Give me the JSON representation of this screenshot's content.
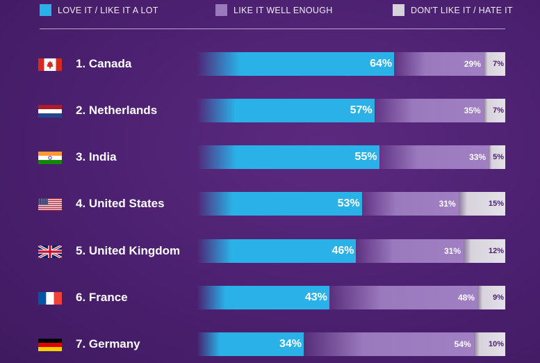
{
  "chart_data": {
    "type": "bar",
    "orientation": "horizontal",
    "stacked": true,
    "legend": {
      "placement": "top",
      "items": [
        {
          "label": "LOVE IT / LIKE IT A LOT",
          "color": "#2ab2e8"
        },
        {
          "label": "LIKE IT WELL ENOUGH",
          "color": "#9a79bd"
        },
        {
          "label": "DON'T LIKE IT / HATE IT",
          "color": "#d6d2da"
        }
      ]
    },
    "categories": [
      "1. Canada",
      "2. Netherlands",
      "3. India",
      "4. United States",
      "5. United Kingdom",
      "6. France",
      "7. Germany"
    ],
    "flags": [
      "canada-flag-icon",
      "netherlands-flag-icon",
      "india-flag-icon",
      "united-states-flag-icon",
      "united-kingdom-flag-icon",
      "france-flag-icon",
      "germany-flag-icon"
    ],
    "series": [
      {
        "name": "LOVE IT / LIKE IT A LOT",
        "values": [
          64,
          57,
          55,
          53,
          46,
          43,
          34
        ],
        "labels": [
          "64%",
          "57%",
          "55%",
          "53%",
          "46%",
          "43%",
          "34%"
        ]
      },
      {
        "name": "LIKE IT WELL ENOUGH",
        "values": [
          29,
          35,
          33,
          31,
          31,
          48,
          54
        ],
        "labels": [
          "29%",
          "35%",
          "33%",
          "31%",
          "31%",
          "48%",
          "54%"
        ]
      },
      {
        "name": "DON'T LIKE IT / HATE IT",
        "values": [
          7,
          7,
          5,
          15,
          12,
          9,
          10
        ],
        "labels": [
          "7%",
          "7%",
          "5%",
          "15%",
          "12%",
          "9%",
          "10%"
        ]
      }
    ],
    "xlim": [
      0,
      100
    ],
    "grid": false
  }
}
